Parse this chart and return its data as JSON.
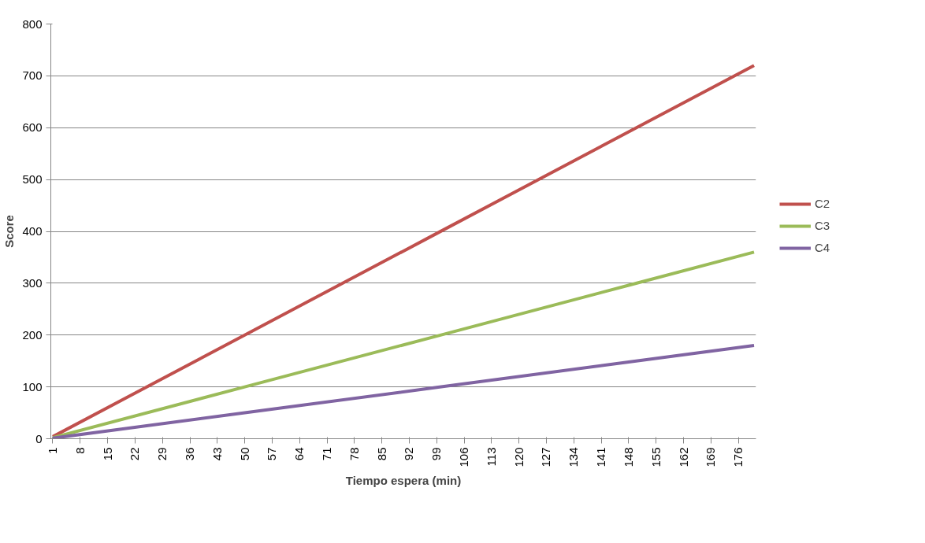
{
  "chart_data": {
    "type": "line",
    "xlabel": "Tiempo espera (min)",
    "ylabel": "Score",
    "xlim": [
      0.5,
      180.5
    ],
    "xticks": [
      1,
      8,
      15,
      22,
      29,
      36,
      43,
      50,
      57,
      64,
      71,
      78,
      85,
      92,
      99,
      106,
      113,
      120,
      127,
      134,
      141,
      148,
      155,
      162,
      169,
      176
    ],
    "ylim": [
      0,
      800
    ],
    "yticks": [
      0,
      100,
      200,
      300,
      400,
      500,
      600,
      700,
      800
    ],
    "grid": "y",
    "legend": "right",
    "marker": "none",
    "line_style": "solid",
    "series": [
      {
        "name": "C2",
        "color": "#c0504d",
        "x": [
          1,
          50,
          99,
          148,
          180
        ],
        "values": [
          4,
          200,
          396,
          592,
          720
        ]
      },
      {
        "name": "C3",
        "color": "#9bbb59",
        "x": [
          1,
          50,
          99,
          148,
          180
        ],
        "values": [
          2,
          100,
          198,
          296,
          360
        ]
      },
      {
        "name": "C4",
        "color": "#8064a2",
        "x": [
          1,
          50,
          99,
          148,
          180
        ],
        "values": [
          1,
          50,
          99,
          148,
          180
        ]
      }
    ]
  }
}
